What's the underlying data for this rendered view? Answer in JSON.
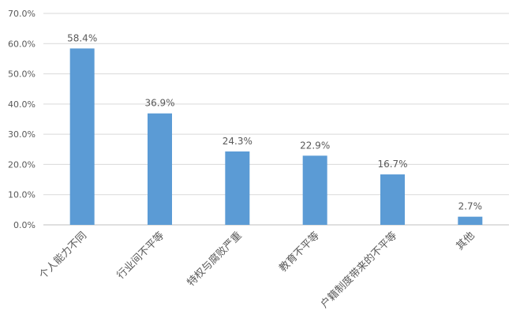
{
  "chart_data": {
    "type": "bar",
    "title": "",
    "xlabel": "",
    "ylabel": "",
    "categories": [
      "个人能力不同",
      "行业间不平等",
      "特权与腐败严重",
      "教育不平等",
      "户籍制度带来的不平等",
      "其他"
    ],
    "values": [
      58.4,
      36.9,
      24.3,
      22.9,
      16.7,
      2.7
    ],
    "data_labels": [
      "58.4%",
      "36.9%",
      "24.3%",
      "22.9%",
      "16.7%",
      "2.7%"
    ],
    "y_ticks": [
      "0.0%",
      "10.0%",
      "20.0%",
      "30.0%",
      "40.0%",
      "50.0%",
      "60.0%",
      "70.0%"
    ],
    "ylim": [
      0,
      70
    ],
    "grid": true,
    "bar_color": "#5B9BD5",
    "grid_color": "#D9D9D9",
    "text_color": "#595959"
  }
}
